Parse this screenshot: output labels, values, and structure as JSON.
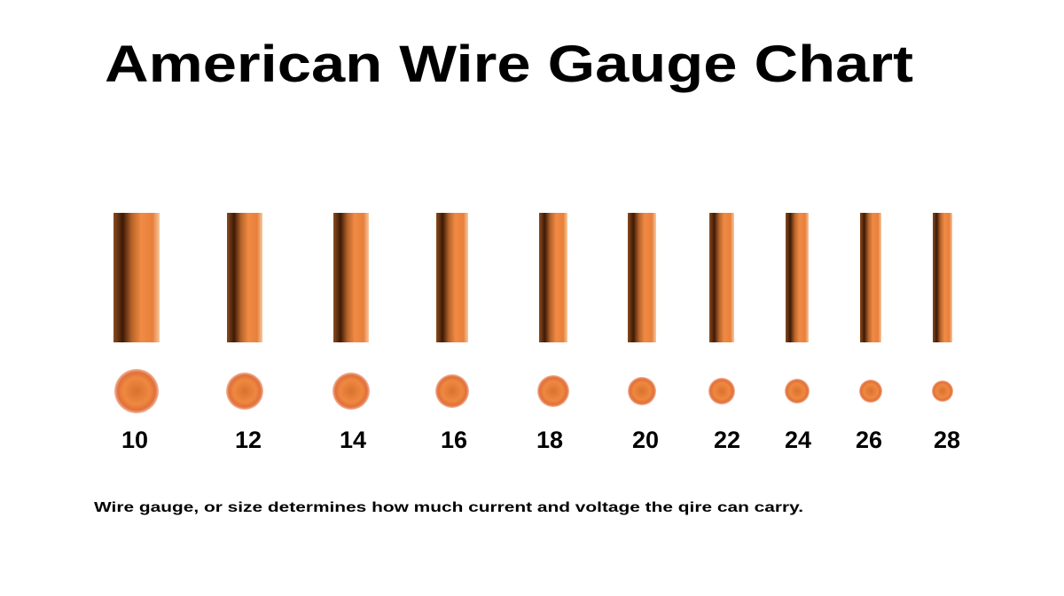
{
  "header": {
    "title": "American Wire Gauge Chart"
  },
  "gauges": [
    "10",
    "12",
    "14",
    "16",
    "18",
    "20",
    "22",
    "24",
    "26",
    "28"
  ],
  "caption": "Wire gauge, or size determines how much current and voltage the qire can carry."
}
